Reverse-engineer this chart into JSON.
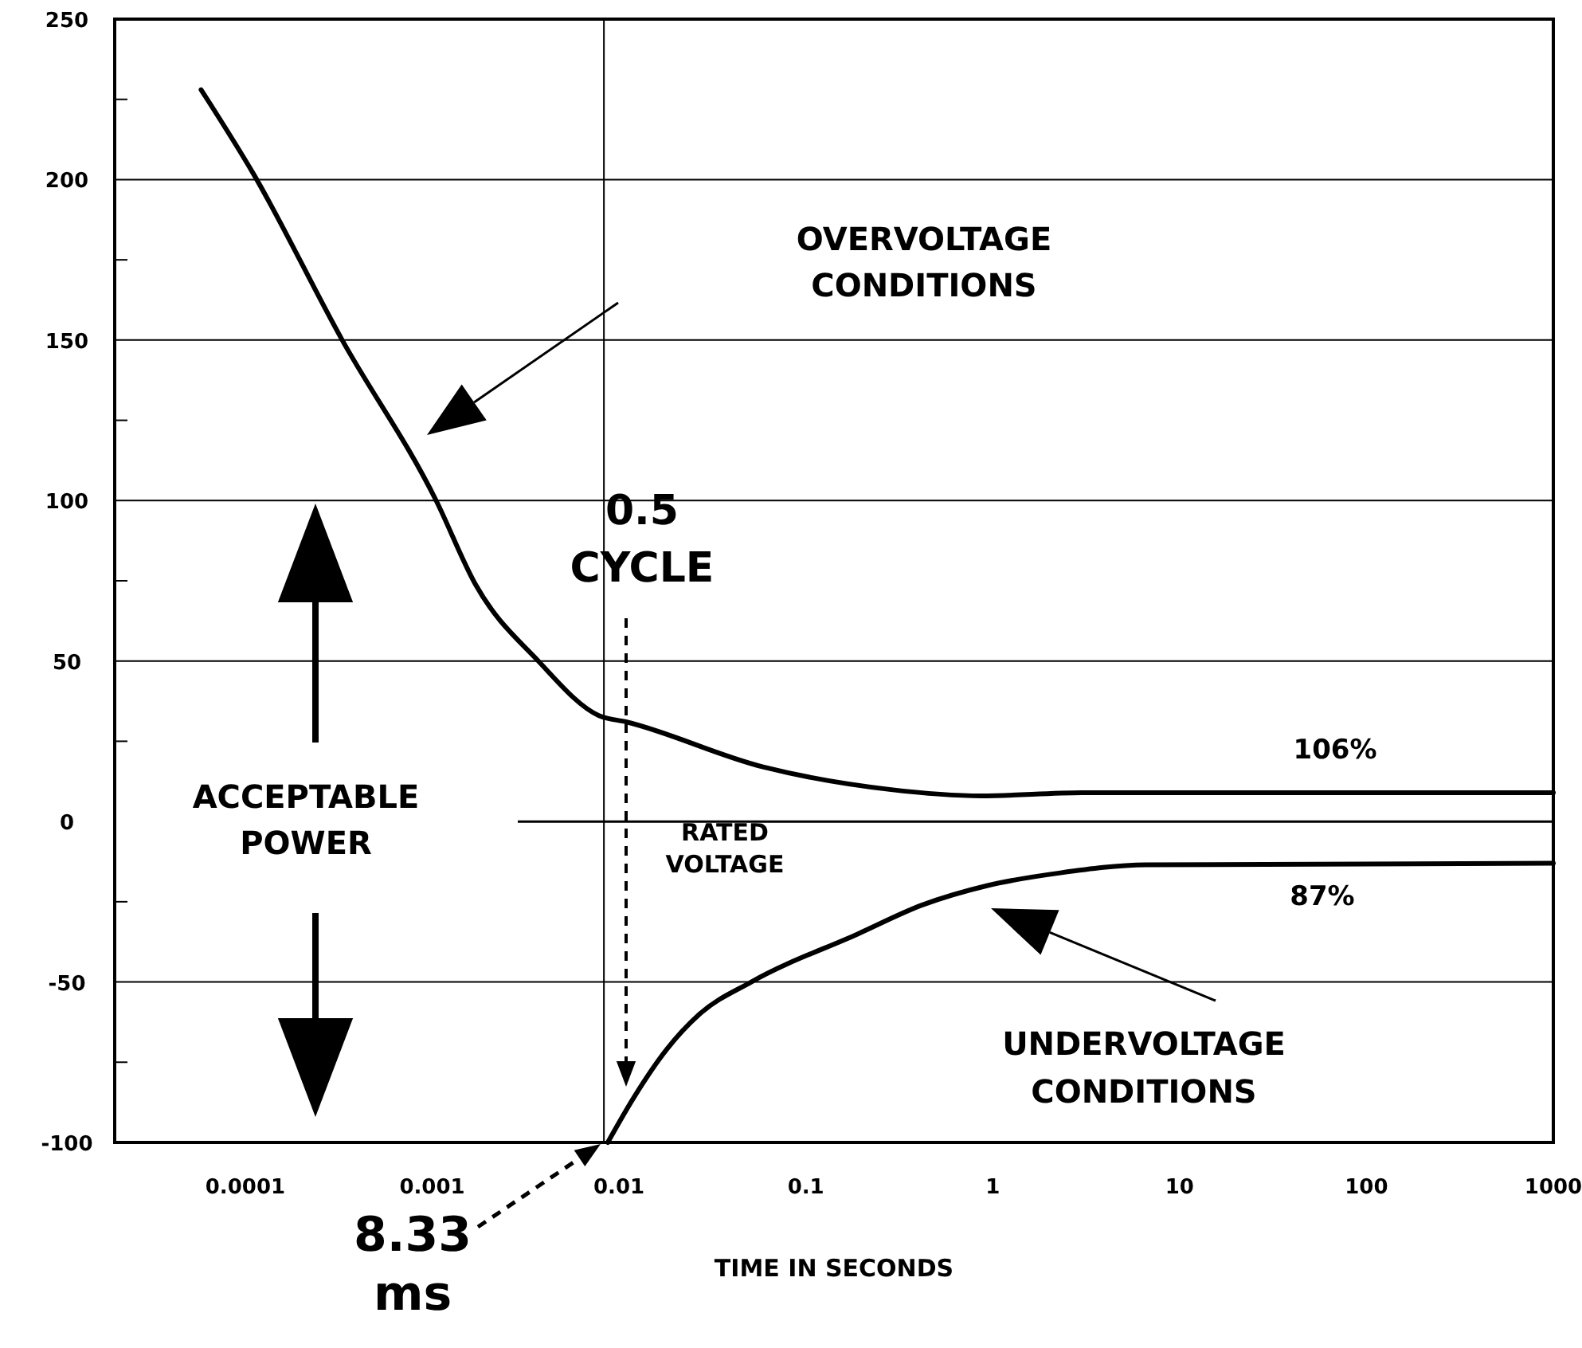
{
  "chart_data": {
    "type": "line",
    "xlabel": "TIME IN SECONDS",
    "log": "x",
    "xlim": [
      2e-05,
      1000
    ],
    "xticks": [
      0.0001,
      0.001,
      0.01,
      0.1,
      1,
      10,
      100,
      1000
    ],
    "ylim": [
      -100,
      250
    ],
    "yticks": [
      -100,
      -50,
      0,
      50,
      100,
      150,
      200,
      250
    ],
    "grid": "y",
    "line_style": "solid",
    "marker": "none",
    "series": [
      {
        "color": "#000000",
        "x": [
          5.8e-05,
          0.00011,
          0.00033,
          0.00105,
          0.0017,
          0.0037,
          0.0078,
          0.011,
          0.059,
          0.28,
          0.87,
          3,
          1000
        ],
        "values": [
          228,
          202,
          150,
          100,
          74,
          50,
          33,
          31,
          17,
          10,
          8,
          9,
          9
        ]
      },
      {
        "color": "#000000",
        "x": [
          0.0087,
          0.012,
          0.018,
          0.027,
          0.051,
          0.19,
          0.42,
          0.93,
          2.3,
          6.6,
          1000
        ],
        "values": [
          -100,
          -86,
          -71,
          -60,
          -50,
          -35,
          -26,
          -20,
          -16,
          -13.5,
          -13
        ]
      }
    ],
    "ref_lines": [
      {
        "axis": "y",
        "value": 0,
        "label": "RATED VOLTAGE"
      },
      {
        "axis": "x",
        "value": 0.0083
      }
    ],
    "annotations": [
      "OVERVOLTAGE CONDITIONS",
      "0.5 CYCLE",
      "ACCEPTABLE POWER",
      "106%",
      "87%",
      "UNDERVOLTAGE CONDITIONS",
      "8.33 ms"
    ]
  }
}
